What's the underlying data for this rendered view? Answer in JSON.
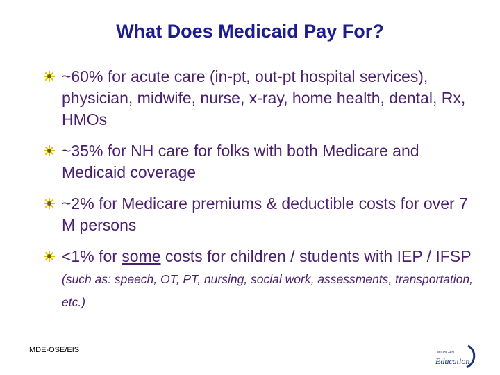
{
  "slide": {
    "title": "What Does Medicaid Pay For?",
    "bullets": [
      {
        "text": "~60% for acute care (in-pt, out-pt hospital services), physician, midwife, nurse, x-ray, home health, dental, Rx, HMOs"
      },
      {
        "text": "~35% for NH care for folks with both Medicare and Medicaid coverage"
      },
      {
        "text": "~2% for Medicare premiums & deductible costs for over 7 M persons"
      },
      {
        "text_before": "<1% for ",
        "text_underlined": "some",
        "text_after": " costs for children / students with IEP / IFSP ",
        "text_small": "(such as: speech, OT, PT, nursing, social work, assessments, transportation, etc.)"
      }
    ],
    "footer": "MDE-OSE/EIS",
    "logo": {
      "top_text": "MICHIGAN",
      "main_text": "Education"
    }
  },
  "colors": {
    "title": "#1c1c8c",
    "body_text": "#4b1f6f",
    "bullet_star": "#e8c400",
    "bullet_star_center": "#7a5c00"
  }
}
